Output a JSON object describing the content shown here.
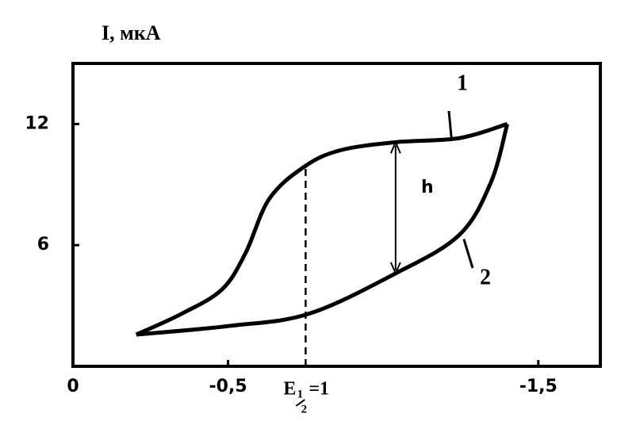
{
  "chart_data": {
    "type": "line",
    "y_label": "I, мкА",
    "xlim": [
      0,
      -1.7
    ],
    "ylim": [
      0,
      15
    ],
    "xticks": [
      0,
      {
        "value": -0.5,
        "label": "-0,5"
      },
      {
        "value": -1.5,
        "label": "-1,5"
      }
    ],
    "yticks": [
      6,
      12
    ],
    "series": [
      {
        "name": "1",
        "color": "#000000",
        "x": [
          -0.204,
          -0.35,
          -0.48,
          -0.556,
          -0.633,
          -0.747,
          -0.862,
          -1.04,
          -1.245,
          -1.4
        ],
        "values": [
          1.57,
          2.6,
          3.8,
          5.6,
          8.3,
          9.9,
          10.7,
          11.1,
          11.3,
          12.0
        ]
      },
      {
        "name": "2",
        "color": "#000000",
        "x": [
          -1.4,
          -1.347,
          -1.245,
          -1.04,
          -0.76,
          -0.505,
          -0.204
        ],
        "values": [
          12.0,
          9.1,
          6.5,
          4.6,
          2.6,
          2.0,
          1.57
        ]
      }
    ],
    "x_marker": {
      "value": -0.75,
      "y": 9.9,
      "label": "E",
      "subscript_num": "1",
      "subscript_den": "2",
      "suffix": "=1"
    },
    "h_arrow": {
      "label": "h",
      "x": -1.04,
      "from": 4.6,
      "to": 11.1
    }
  }
}
